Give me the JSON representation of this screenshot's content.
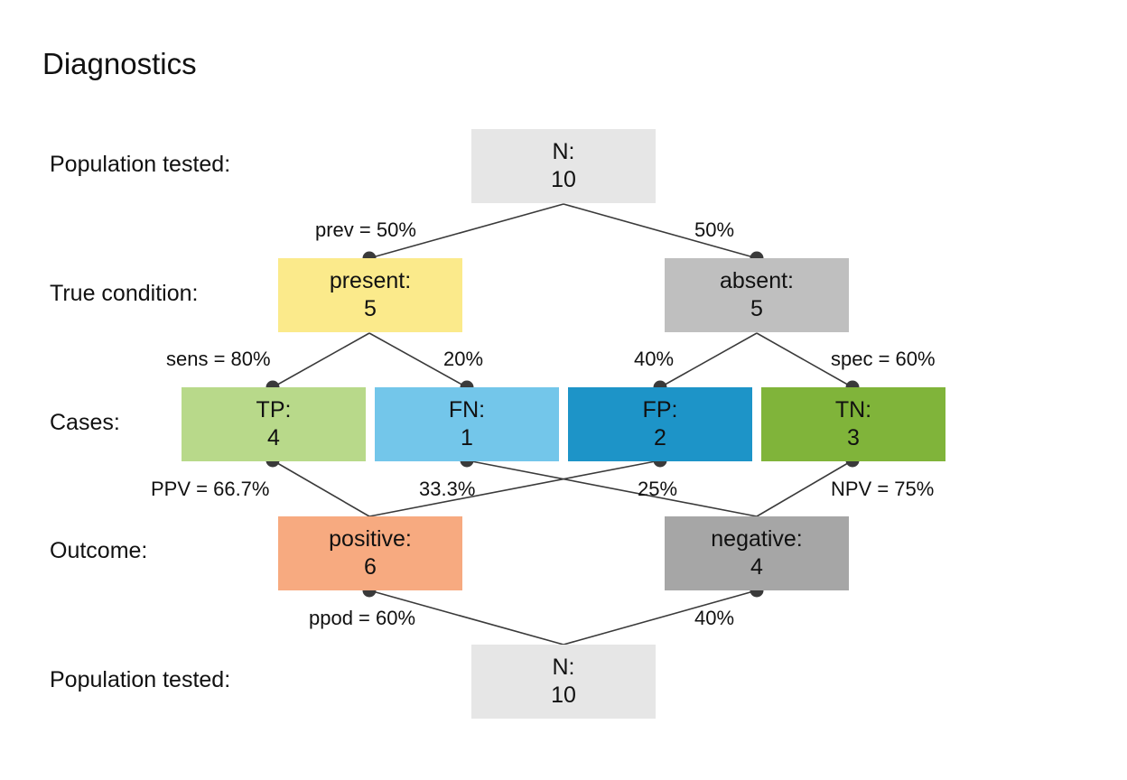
{
  "title": "Diagnostics",
  "row_labels": {
    "population_top": "Population tested:",
    "condition": "True condition:",
    "cases": "Cases:",
    "outcome": "Outcome:",
    "population_bottom": "Population tested:"
  },
  "nodes": {
    "n_top": {
      "label": "N:",
      "value": "10",
      "color": "#e6e6e6"
    },
    "present": {
      "label": "present:",
      "value": "5",
      "color": "#fbea8b"
    },
    "absent": {
      "label": "absent:",
      "value": "5",
      "color": "#bfbfbf"
    },
    "tp": {
      "label": "TP:",
      "value": "4",
      "color": "#b8d98a"
    },
    "fn": {
      "label": "FN:",
      "value": "1",
      "color": "#73c6ea"
    },
    "fp": {
      "label": "FP:",
      "value": "2",
      "color": "#1d94c8"
    },
    "tn": {
      "label": "TN:",
      "value": "3",
      "color": "#80b43a"
    },
    "positive": {
      "label": "positive:",
      "value": "6",
      "color": "#f7aa80"
    },
    "negative": {
      "label": "negative:",
      "value": "4",
      "color": "#a6a6a6"
    },
    "n_bottom": {
      "label": "N:",
      "value": "10",
      "color": "#e6e6e6"
    }
  },
  "probabilities": {
    "prev": "prev = 50%",
    "prev_compl": "50%",
    "sens": "sens = 80%",
    "sens_compl": "20%",
    "spec_compl": "40%",
    "spec": "spec = 60%",
    "ppv": "PPV = 66.7%",
    "fdr": "33.3%",
    "for": "25%",
    "npv": "NPV = 75%",
    "ppod": "ppod = 60%",
    "ppod_compl": "40%"
  },
  "colors": {
    "line": "#3a3a3a",
    "dot": "#3a3a3a"
  }
}
